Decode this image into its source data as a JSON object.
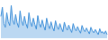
{
  "chart_data": {
    "type": "area",
    "color": "#3d8fd9",
    "tick_labels": false,
    "grid": false,
    "ylim": [
      0,
      100
    ],
    "values": [
      60,
      85,
      40,
      30,
      70,
      45,
      35,
      90,
      50,
      38,
      65,
      42,
      30,
      75,
      48,
      35,
      60,
      40,
      28,
      70,
      45,
      32,
      55,
      38,
      25,
      62,
      40,
      30,
      50,
      34,
      22,
      55,
      36,
      26,
      45,
      30,
      20,
      48,
      32,
      24,
      40,
      28,
      18,
      44,
      30,
      22,
      36,
      25,
      16,
      40,
      27,
      20,
      32,
      22,
      14,
      35,
      24,
      18,
      28,
      20,
      12,
      30,
      20,
      15,
      24,
      17,
      10,
      26,
      15,
      18,
      12,
      20,
      10
    ]
  }
}
